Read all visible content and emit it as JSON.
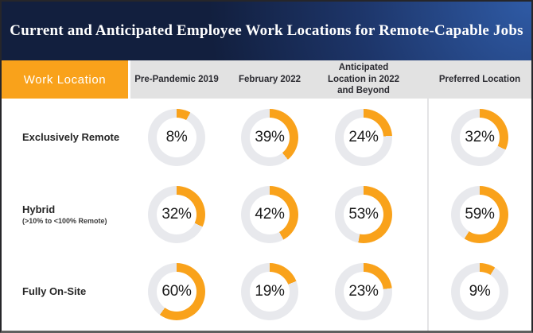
{
  "title": "Current and Anticipated Employee Work Locations for Remote-Capable Jobs",
  "header": {
    "corner": "Work Location",
    "columns": [
      "Pre-Pandemic 2019",
      "February 2022",
      "Anticipated Location in 2022 and Beyond",
      "Preferred Location"
    ]
  },
  "rows": [
    {
      "label": "Exclusively Remote",
      "sublabel": "",
      "cells": [
        "8%",
        "39%",
        "24%",
        "32%"
      ]
    },
    {
      "label": "Hybrid",
      "sublabel": "(>10% to <100% Remote)",
      "cells": [
        "32%",
        "42%",
        "53%",
        "59%"
      ]
    },
    {
      "label": "Fully On-Site",
      "sublabel": "",
      "cells": [
        "60%",
        "19%",
        "23%",
        "9%"
      ]
    }
  ],
  "colors": {
    "accent_orange": "#F9A21B",
    "ring_gray": "#E8E9ED",
    "header_gray": "#E2E2E2",
    "banner_navy": "#121F3E",
    "banner_blue": "#2F5BA6"
  },
  "chart_data": {
    "type": "pie",
    "subtype": "donut-grid",
    "title": "Current and Anticipated Employee Work Locations for Remote-Capable Jobs",
    "unit": "%",
    "categories": [
      "Exclusively Remote",
      "Hybrid (>10% to <100% Remote)",
      "Fully On-Site"
    ],
    "series": [
      {
        "name": "Pre-Pandemic 2019",
        "values": [
          8,
          32,
          60
        ]
      },
      {
        "name": "February 2022",
        "values": [
          39,
          42,
          19
        ]
      },
      {
        "name": "Anticipated Location in 2022 and Beyond",
        "values": [
          24,
          53,
          23
        ]
      },
      {
        "name": "Preferred Location",
        "values": [
          32,
          59,
          9
        ]
      }
    ],
    "legend_position": "none",
    "notes": "Each cell is a donut chart; orange arc = percentage shown, starting at 12 o'clock clockwise."
  }
}
